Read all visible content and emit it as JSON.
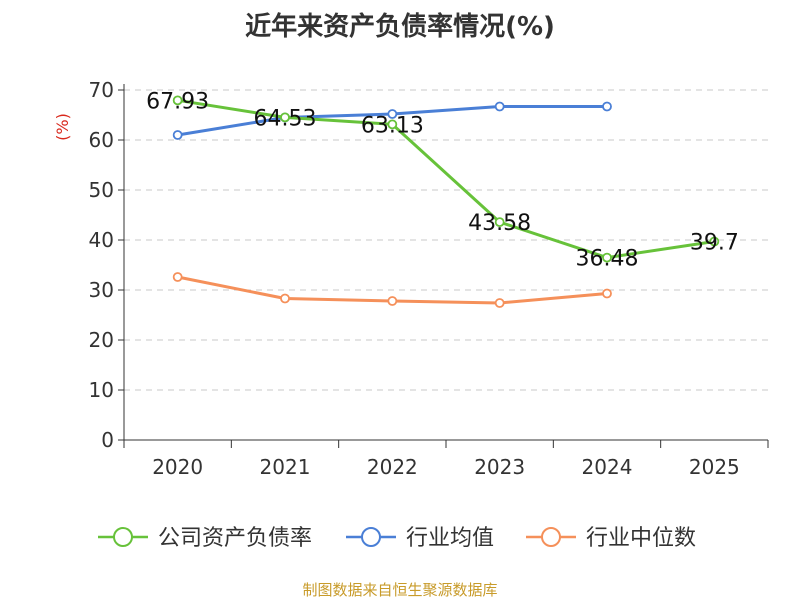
{
  "chart_data": {
    "type": "line",
    "title": "近年来资产负债率情况(%)",
    "ylabel": "(%)",
    "xlabel": "",
    "categories": [
      "2020",
      "2021",
      "2022",
      "2023",
      "2024",
      "2025"
    ],
    "ylim": [
      0,
      70
    ],
    "yticks": [
      0,
      10,
      20,
      30,
      40,
      50,
      60,
      70
    ],
    "grid": true,
    "legend_position": "bottom",
    "series": [
      {
        "name": "公司资产负债率",
        "color": "#67c23a",
        "values": [
          67.93,
          64.53,
          63.13,
          43.58,
          36.48,
          39.7
        ],
        "labels": [
          "67.93",
          "64.53",
          "63.13",
          "43.58",
          "36.48",
          "39.7"
        ]
      },
      {
        "name": "行业均值",
        "color": "#4a7fd6",
        "values": [
          61.0,
          64.5,
          65.2,
          66.7,
          66.7,
          null
        ]
      },
      {
        "name": "行业中位数",
        "color": "#f5905a",
        "values": [
          32.6,
          28.3,
          27.8,
          27.4,
          29.3,
          null
        ]
      }
    ]
  },
  "footer": {
    "source": "制图数据来自恒生聚源数据库"
  }
}
